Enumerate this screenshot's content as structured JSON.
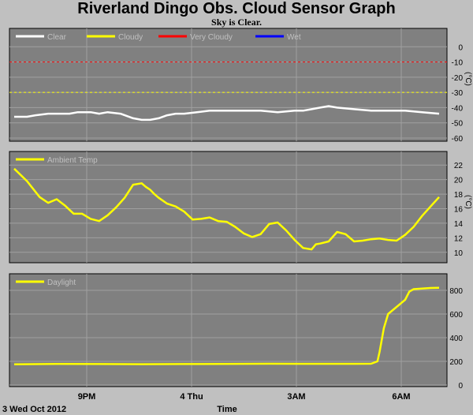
{
  "header": {
    "title": "Riverland Dingo Obs. Cloud Sensor Graph",
    "subtitle": "Sky is Clear."
  },
  "footer": {
    "date_label": "3 Wed Oct 2012",
    "x_title": "Time"
  },
  "colors": {
    "plot_bg": "#808080",
    "frame": "#c0c0c0",
    "grid": "#a0a0a0",
    "clear": "#ffffff",
    "cloudy": "#ffff00",
    "very_cloudy": "#ff0000",
    "wet": "#0000ff",
    "legend_text": "#c0c0c0"
  },
  "chart_data": [
    {
      "type": "line",
      "x_ticks": [
        "9PM",
        "4 Thu",
        "3AM",
        "6AM"
      ],
      "ylabel": "(°C)",
      "ylim": [
        -60,
        10
      ],
      "y_ticks": [
        0,
        -10,
        -20,
        -30,
        -40,
        -50,
        -60
      ],
      "legend": [
        "Clear",
        "Cloudy",
        "Very Cloudy",
        "Wet"
      ],
      "thresholds": [
        {
          "name": "Very Cloudy",
          "value": -10
        },
        {
          "name": "Cloudy",
          "value": -30
        }
      ],
      "series": [
        {
          "name": "Clear",
          "x": [
            0,
            0.03,
            0.05,
            0.08,
            0.1,
            0.13,
            0.15,
            0.18,
            0.2,
            0.22,
            0.25,
            0.28,
            0.3,
            0.32,
            0.34,
            0.36,
            0.38,
            0.4,
            0.43,
            0.46,
            0.5,
            0.54,
            0.58,
            0.62,
            0.66,
            0.68,
            0.7,
            0.72,
            0.74,
            0.76,
            0.8,
            0.84,
            0.88,
            0.92,
            0.96,
            1
          ],
          "y": [
            -46,
            -46,
            -45,
            -44,
            -44,
            -44,
            -43,
            -43,
            -44,
            -43,
            -44,
            -47,
            -48,
            -48,
            -47,
            -45,
            -44,
            -44,
            -43,
            -42,
            -42,
            -42,
            -42,
            -43,
            -42,
            -42,
            -41,
            -40,
            -39,
            -40,
            -41,
            -42,
            -42,
            -42,
            -43,
            -44
          ]
        }
      ]
    },
    {
      "type": "line",
      "x_ticks": [
        "9PM",
        "4 Thu",
        "3AM",
        "6AM"
      ],
      "ylabel": "(°C)",
      "ylim": [
        9,
        23
      ],
      "y_ticks": [
        10,
        12,
        14,
        16,
        18,
        20,
        22
      ],
      "legend": [
        "Ambient Temp"
      ],
      "series": [
        {
          "name": "Ambient Temp",
          "x": [
            0,
            0.03,
            0.06,
            0.08,
            0.1,
            0.12,
            0.14,
            0.16,
            0.18,
            0.2,
            0.22,
            0.24,
            0.26,
            0.28,
            0.3,
            0.31,
            0.32,
            0.33,
            0.34,
            0.36,
            0.38,
            0.4,
            0.42,
            0.44,
            0.46,
            0.48,
            0.5,
            0.52,
            0.54,
            0.56,
            0.58,
            0.6,
            0.62,
            0.64,
            0.66,
            0.68,
            0.7,
            0.71,
            0.72,
            0.74,
            0.76,
            0.78,
            0.8,
            0.82,
            0.84,
            0.86,
            0.88,
            0.9,
            0.92,
            0.94,
            0.96,
            0.98,
            1
          ],
          "y": [
            21.5,
            19.8,
            17.6,
            16.8,
            17.3,
            16.4,
            15.3,
            15.3,
            14.6,
            14.3,
            15.1,
            16.2,
            17.5,
            19.3,
            19.5,
            19.0,
            18.6,
            18.0,
            17.5,
            16.7,
            16.3,
            15.6,
            14.5,
            14.6,
            14.8,
            14.3,
            14.2,
            13.5,
            12.6,
            12.1,
            12.5,
            13.9,
            14.1,
            13.0,
            11.7,
            10.6,
            10.4,
            11.1,
            11.2,
            11.5,
            12.8,
            12.5,
            11.5,
            11.6,
            11.8,
            11.9,
            11.7,
            11.6,
            12.4,
            13.5,
            15.0,
            16.3,
            17.6
          ]
        }
      ]
    },
    {
      "type": "line",
      "x_ticks": [
        "9PM",
        "4 Thu",
        "3AM",
        "6AM"
      ],
      "ylim": [
        0,
        900
      ],
      "y_ticks": [
        0,
        200,
        400,
        600,
        800
      ],
      "legend": [
        "Daylight"
      ],
      "series": [
        {
          "name": "Daylight",
          "x": [
            0,
            0.1,
            0.2,
            0.3,
            0.4,
            0.5,
            0.6,
            0.7,
            0.8,
            0.84,
            0.855,
            0.86,
            0.87,
            0.88,
            0.9,
            0.92,
            0.93,
            0.94,
            0.96,
            0.98,
            1
          ],
          "y": [
            175,
            178,
            177,
            176,
            177,
            178,
            180,
            179,
            179,
            180,
            200,
            280,
            480,
            600,
            660,
            720,
            790,
            810,
            815,
            820,
            822
          ]
        }
      ]
    }
  ]
}
